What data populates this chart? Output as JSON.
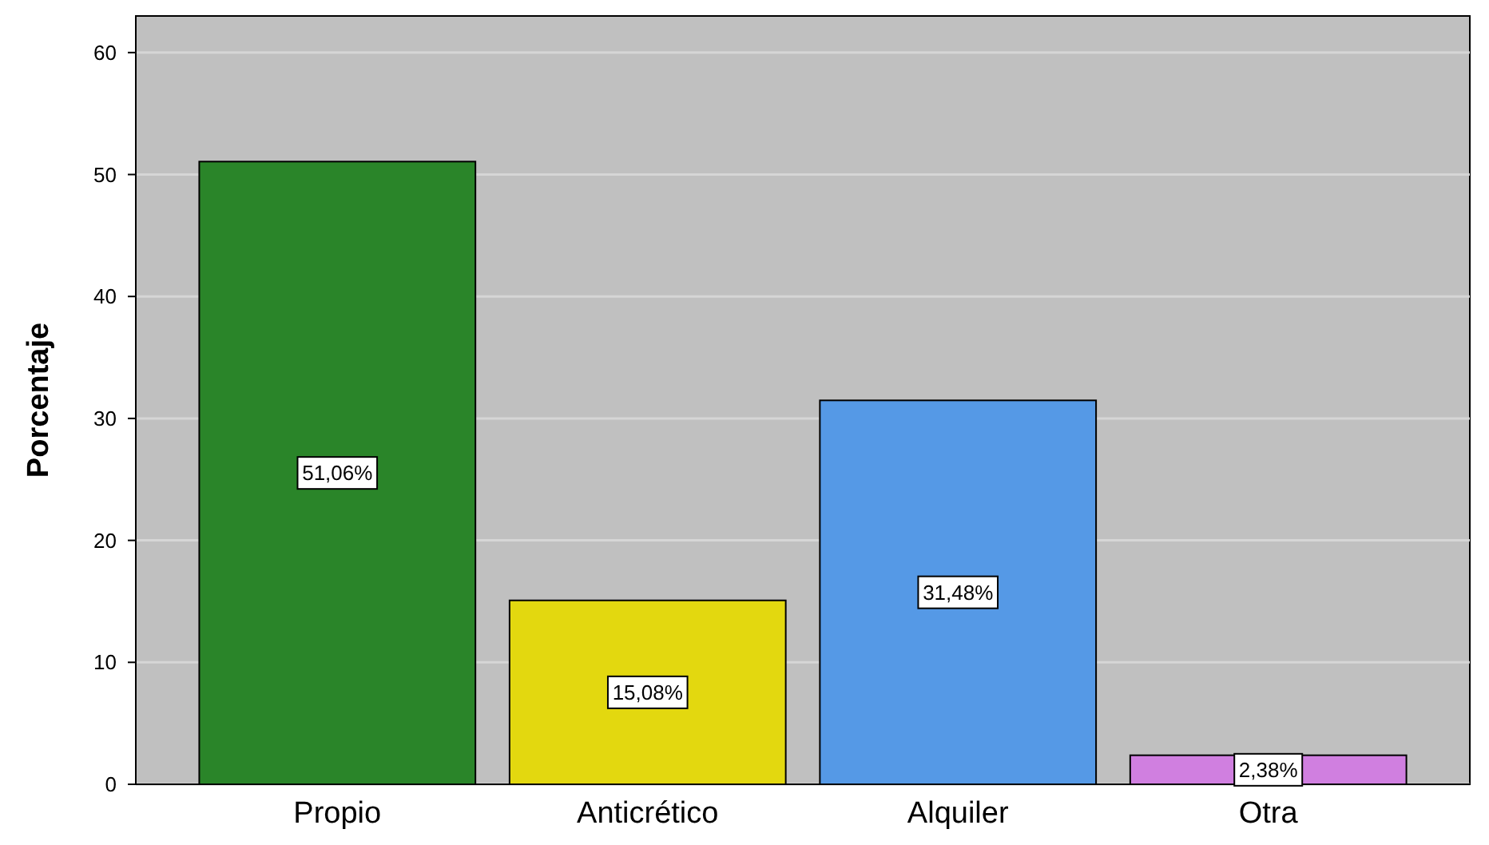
{
  "chart_data": {
    "type": "bar",
    "ylabel": "Porcentaje",
    "categories": [
      "Propio",
      "Anticrético",
      "Alquiler",
      "Otra"
    ],
    "values": [
      51.06,
      15.08,
      31.48,
      2.38
    ],
    "colors": [
      "#2a8529",
      "#e3d80f",
      "#5599e6",
      "#d07fe0"
    ],
    "value_labels": [
      "51,06%",
      "15,08%",
      "31,48%",
      "2,38%"
    ],
    "ylim": [
      0,
      63
    ],
    "yticks": [
      0,
      10,
      20,
      30,
      40,
      50,
      60
    ],
    "grid": "y"
  }
}
